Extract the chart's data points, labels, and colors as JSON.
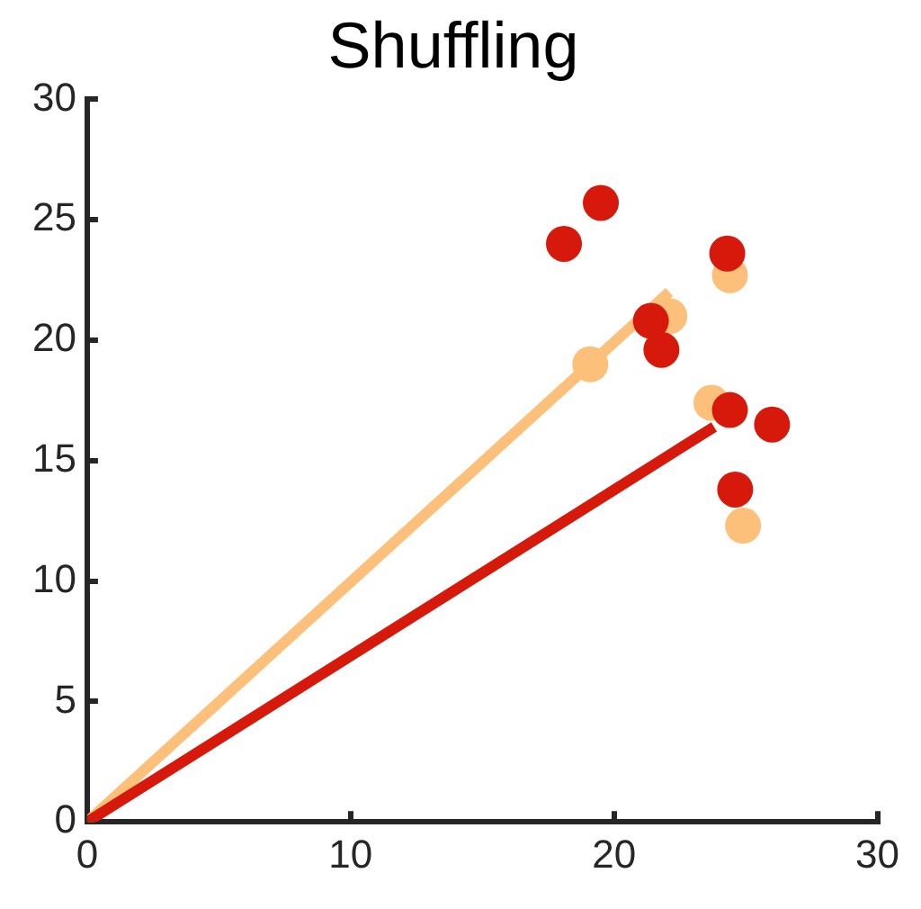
{
  "chart_data": {
    "type": "scatter",
    "title": "Shuffling",
    "xlim": [
      0,
      30
    ],
    "xticks": [
      0,
      10,
      20,
      30
    ],
    "ylim": [
      0,
      30
    ],
    "yticks": [
      0,
      5,
      10,
      15,
      20,
      25,
      30
    ],
    "grid": false,
    "legend": false,
    "marker": "circle",
    "series": [
      {
        "color": "#d7190b",
        "x": [
          19.5,
          18.1,
          24.3,
          21.4,
          21.8,
          24.4,
          26.0,
          24.6
        ],
        "values": [
          25.7,
          24.0,
          23.6,
          20.8,
          19.6,
          17.1,
          16.5,
          13.8
        ]
      },
      {
        "color": "#fdc07a",
        "x": [
          24.4,
          22.1,
          19.1,
          23.7,
          24.9
        ],
        "values": [
          22.7,
          21.0,
          19.0,
          17.4,
          12.3
        ]
      },
      {
        "type": "line",
        "color": "#d7190b",
        "marker": "none",
        "x": [
          0,
          23.8
        ],
        "values": [
          0,
          16.4
        ]
      },
      {
        "type": "line",
        "color": "#fdc07a",
        "marker": "none",
        "x": [
          0,
          22.1
        ],
        "values": [
          0,
          22.0
        ]
      }
    ]
  }
}
